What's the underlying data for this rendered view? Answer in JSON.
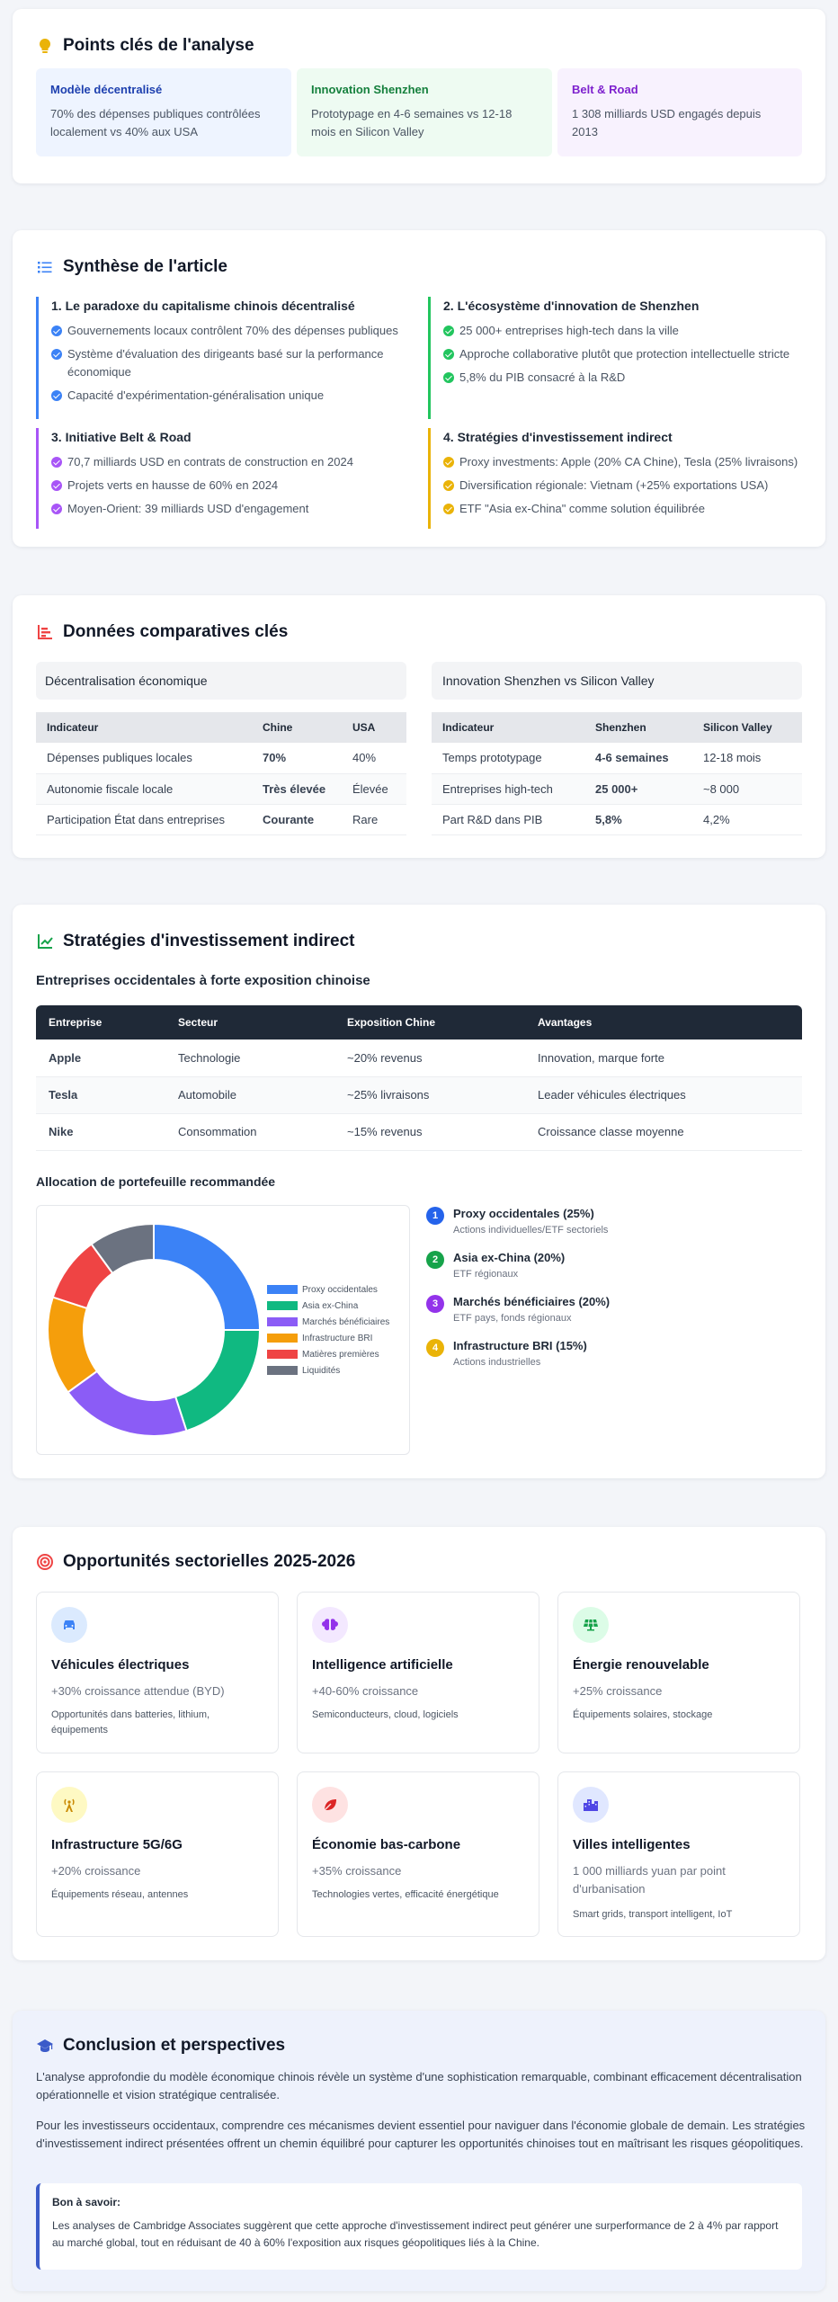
{
  "key_points": {
    "title": "Points clés de l'analyse",
    "items": [
      {
        "title": "Modèle décentralisé",
        "text": "70% des dépenses publiques contrôlées localement vs 40% aux USA",
        "color": "#1e40af",
        "bg": "#eef4ff"
      },
      {
        "title": "Innovation Shenzhen",
        "text": "Prototypage en 4-6 semaines vs 12-18 mois en Silicon Valley",
        "color": "#15803d",
        "bg": "#eefbf2"
      },
      {
        "title": "Belt & Road",
        "text": "1 308 milliards USD engagés depuis 2013",
        "color": "#7e22ce",
        "bg": "#f8f2fe"
      }
    ]
  },
  "synthesis": {
    "title": "Synthèse de l'article",
    "sections": [
      {
        "title": "1. Le paradoxe du capitalisme chinois décentralisé",
        "color": "#3b82f6",
        "items": [
          "Gouvernements locaux contrôlent 70% des dépenses publiques",
          "Système d'évaluation des dirigeants basé sur la performance économique",
          "Capacité d'expérimentation-généralisation unique"
        ]
      },
      {
        "title": "2. L'écosystème d'innovation de Shenzhen",
        "color": "#22c55e",
        "items": [
          "25 000+ entreprises high-tech dans la ville",
          "Approche collaborative plutôt que protection intellectuelle stricte",
          "5,8% du PIB consacré à la R&D"
        ]
      },
      {
        "title": "3. Initiative Belt & Road",
        "color": "#a855f7",
        "items": [
          "70,7 milliards USD en contrats de construction en 2024",
          "Projets verts en hausse de 60% en 2024",
          "Moyen-Orient: 39 milliards USD d'engagement"
        ]
      },
      {
        "title": "4. Stratégies d'investissement indirect",
        "color": "#eab308",
        "items": [
          "Proxy investments: Apple (20% CA Chine), Tesla (25% livraisons)",
          "Diversification régionale: Vietnam (+25% exportations USA)",
          "ETF \"Asia ex-China\" comme solution équilibrée"
        ]
      }
    ]
  },
  "comparative": {
    "title": "Données comparatives clés",
    "left": {
      "heading": "Décentralisation économique",
      "columns": [
        "Indicateur",
        "Chine",
        "USA"
      ],
      "rows": [
        [
          "Dépenses publiques locales",
          "70%",
          "40%"
        ],
        [
          "Autonomie fiscale locale",
          "Très élevée",
          "Élevée"
        ],
        [
          "Participation État dans entreprises",
          "Courante",
          "Rare"
        ]
      ]
    },
    "right": {
      "heading": "Innovation Shenzhen vs Silicon Valley",
      "columns": [
        "Indicateur",
        "Shenzhen",
        "Silicon Valley"
      ],
      "rows": [
        [
          "Temps prototypage",
          "4-6 semaines",
          "12-18 mois"
        ],
        [
          "Entreprises high-tech",
          "25 000+",
          "~8 000"
        ],
        [
          "Part R&D dans PIB",
          "5,8%",
          "4,2%"
        ]
      ]
    }
  },
  "strategies": {
    "title": "Stratégies d'investissement indirect",
    "table_title": "Entreprises occidentales à forte exposition chinoise",
    "columns": [
      "Entreprise",
      "Secteur",
      "Exposition Chine",
      "Avantages"
    ],
    "rows": [
      [
        "Apple",
        "Technologie",
        "~20% revenus",
        "Innovation, marque forte"
      ],
      [
        "Tesla",
        "Automobile",
        "~25% livraisons",
        "Leader véhicules électriques"
      ],
      [
        "Nike",
        "Consommation",
        "~15% revenus",
        "Croissance classe moyenne"
      ]
    ],
    "allocation_title": "Allocation de portefeuille recommandée",
    "allocation": [
      {
        "n": "1",
        "title": "Proxy occidentales (25%)",
        "desc": "Actions individuelles/ETF sectoriels",
        "color": "#2563eb"
      },
      {
        "n": "2",
        "title": "Asia ex-China (20%)",
        "desc": "ETF régionaux",
        "color": "#16a34a"
      },
      {
        "n": "3",
        "title": "Marchés bénéficiaires (20%)",
        "desc": "ETF pays, fonds régionaux",
        "color": "#9333ea"
      },
      {
        "n": "4",
        "title": "Infrastructure BRI (15%)",
        "desc": "Actions industrielles",
        "color": "#eab308"
      }
    ]
  },
  "chart_data": {
    "type": "pie",
    "donut": true,
    "title": "",
    "legend_position": "right",
    "categories": [
      "Proxy occidentales",
      "Asia ex-China",
      "Marchés bénéficiaires",
      "Infrastructure BRI",
      "Matières premières",
      "Liquidités"
    ],
    "values": [
      25,
      20,
      20,
      15,
      10,
      10
    ],
    "colors": [
      "#3b82f6",
      "#10b981",
      "#8b5cf6",
      "#f59e0b",
      "#ef4444",
      "#6b7280"
    ]
  },
  "opportunities": {
    "title": "Opportunités sectorielles 2025-2026",
    "items": [
      {
        "icon": "car-icon",
        "title": "Véhicules électriques",
        "growth": "+30% croissance attendue (BYD)",
        "detail": "Opportunités dans batteries, lithium, équipements",
        "icon_color": "#3b82f6",
        "icon_bg": "#dbeafe"
      },
      {
        "icon": "brain-icon",
        "title": "Intelligence artificielle",
        "growth": "+40-60% croissance",
        "detail": "Semiconducteurs, cloud, logiciels",
        "icon_color": "#9333ea",
        "icon_bg": "#f3e8ff"
      },
      {
        "icon": "solar-panel-icon",
        "title": "Énergie renouvelable",
        "growth": "+25% croissance",
        "detail": "Équipements solaires, stockage",
        "icon_color": "#16a34a",
        "icon_bg": "#dcfce7"
      },
      {
        "icon": "broadcast-tower-icon",
        "title": "Infrastructure 5G/6G",
        "growth": "+20% croissance",
        "detail": "Équipements réseau, antennes",
        "icon_color": "#ca8a04",
        "icon_bg": "#fef9c3"
      },
      {
        "icon": "leaf-icon",
        "title": "Économie bas-carbone",
        "growth": "+35% croissance",
        "detail": "Technologies vertes, efficacité énergétique",
        "icon_color": "#dc2626",
        "icon_bg": "#fee2e2"
      },
      {
        "icon": "city-icon",
        "title": "Villes intelligentes",
        "growth": "1 000 milliards yuan par point d'urbanisation",
        "detail": "Smart grids, transport intelligent, IoT",
        "icon_color": "#4f46e5",
        "icon_bg": "#e0e7ff"
      }
    ]
  },
  "conclusion": {
    "title": "Conclusion et perspectives",
    "p1": "L'analyse approfondie du modèle économique chinois révèle un système d'une sophistication remarquable, combinant efficacement décentralisation opérationnelle et vision stratégique centralisée.",
    "p2": "Pour les investisseurs occidentaux, comprendre ces mécanismes devient essentiel pour naviguer dans l'économie globale de demain. Les stratégies d'investissement indirect présentées offrent un chemin équilibré pour capturer les opportunités chinoises tout en maîtrisant les risques géopolitiques.",
    "note_title": "Bon à savoir:",
    "note_text": "Les analyses de Cambridge Associates suggèrent que cette approche d'investissement indirect peut générer une surperformance de 2 à 4% par rapport au marché global, tout en réduisant de 40 à 60% l'exposition aux risques géopolitiques liés à la Chine."
  }
}
